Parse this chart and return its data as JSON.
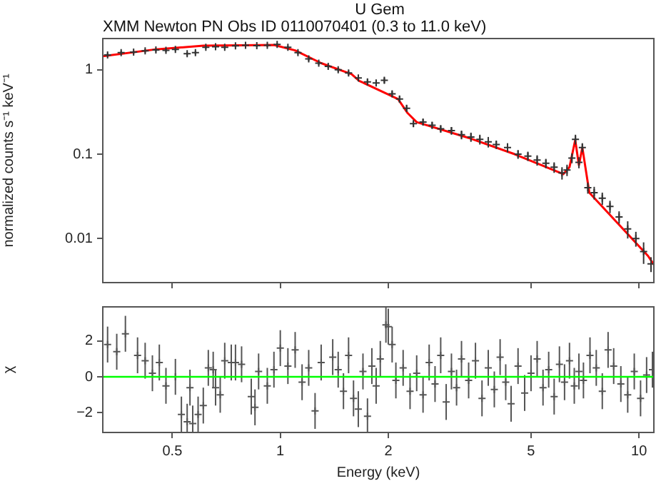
{
  "chart_data": [
    {
      "type": "scatter",
      "title": "U Gem",
      "subtitle": "XMM Newton PN Obs ID 0110070401 (0.3 to 11.0 keV)",
      "ylabel": "normalized counts s⁻¹ keV⁻¹",
      "log": "xy",
      "xlim": [
        0.32,
        11
      ],
      "xticks": [
        0.5,
        1,
        2,
        5,
        10
      ],
      "ylim": [
        0.003,
        2.35
      ],
      "yticks": [
        0.01,
        0.1,
        1
      ],
      "tick_labels": "y",
      "grid": false,
      "legend": false,
      "marker": "cross",
      "series": [
        {
          "color": "#333333",
          "x": [
            0.33,
            0.36,
            0.39,
            0.42,
            0.45,
            0.48,
            0.51,
            0.55,
            0.58,
            0.62,
            0.66,
            0.7,
            0.75,
            0.8,
            0.86,
            0.92,
            0.98,
            1.05,
            1.12,
            1.2,
            1.28,
            1.36,
            1.45,
            1.55,
            1.65,
            1.75,
            1.85,
            1.95,
            2.05,
            2.15,
            2.25,
            2.35,
            2.5,
            2.65,
            2.8,
            3.0,
            3.2,
            3.4,
            3.6,
            3.8,
            4.0,
            4.3,
            4.6,
            4.9,
            5.2,
            5.5,
            5.8,
            6.1,
            6.3,
            6.5,
            6.65,
            6.8,
            6.95,
            7.2,
            7.5,
            7.9,
            8.3,
            8.8,
            9.3,
            9.8,
            10.3,
            10.8
          ],
          "values": [
            1.5,
            1.6,
            1.62,
            1.68,
            1.72,
            1.7,
            1.75,
            1.55,
            1.6,
            1.85,
            1.88,
            1.85,
            1.92,
            1.95,
            1.93,
            1.95,
            2.0,
            1.85,
            1.6,
            1.35,
            1.2,
            1.1,
            1.0,
            0.92,
            0.8,
            0.72,
            0.7,
            0.75,
            0.52,
            0.45,
            0.35,
            0.23,
            0.24,
            0.22,
            0.2,
            0.19,
            0.17,
            0.16,
            0.15,
            0.14,
            0.13,
            0.12,
            0.1,
            0.095,
            0.085,
            0.078,
            0.07,
            0.06,
            0.065,
            0.09,
            0.15,
            0.08,
            0.12,
            0.04,
            0.035,
            0.03,
            0.024,
            0.018,
            0.013,
            0.01,
            0.007,
            0.005
          ],
          "errors": [
            0.08,
            0.08,
            0.08,
            0.08,
            0.08,
            0.08,
            0.08,
            0.08,
            0.08,
            0.08,
            0.08,
            0.08,
            0.08,
            0.08,
            0.08,
            0.08,
            0.08,
            0.08,
            0.08,
            0.08,
            0.06,
            0.06,
            0.06,
            0.06,
            0.06,
            0.06,
            0.06,
            0.06,
            0.04,
            0.04,
            0.03,
            0.02,
            0.02,
            0.02,
            0.02,
            0.02,
            0.02,
            0.02,
            0.02,
            0.02,
            0.015,
            0.015,
            0.012,
            0.012,
            0.012,
            0.01,
            0.01,
            0.01,
            0.01,
            0.012,
            0.02,
            0.012,
            0.015,
            0.006,
            0.006,
            0.005,
            0.004,
            0.003,
            0.003,
            0.002,
            0.002,
            0.001
          ]
        },
        {
          "type": "line",
          "marker": "none",
          "color": "#ff0000",
          "x": [
            0.32,
            0.45,
            0.61,
            0.96,
            1.1,
            1.3,
            1.58,
            1.66,
            2.0,
            2.13,
            2.26,
            2.4,
            3.35,
            4.5,
            6.15,
            6.4,
            6.64,
            6.8,
            6.95,
            7.27,
            10.6,
            11
          ],
          "values": [
            1.45,
            1.75,
            1.93,
            1.97,
            1.7,
            1.2,
            0.89,
            0.74,
            0.51,
            0.45,
            0.31,
            0.24,
            0.156,
            0.1,
            0.058,
            0.07,
            0.147,
            0.074,
            0.12,
            0.035,
            0.0062,
            0.0049
          ]
        }
      ]
    },
    {
      "type": "scatter",
      "xlabel": "Energy (keV)",
      "ylabel": "χ",
      "log": "x",
      "xlim": [
        0.32,
        11
      ],
      "xticks": [
        0.5,
        1,
        2,
        5,
        10
      ],
      "ylim": [
        -3.1,
        3.9
      ],
      "yticks": [
        {
          "value": -2,
          "label": "−2"
        },
        0,
        2
      ],
      "grid": false,
      "legend": false,
      "marker": "cross",
      "ref_lines": [
        {
          "axis": "y",
          "value": 0,
          "color": "#00ff00"
        }
      ],
      "series": [
        {
          "color": "#555555",
          "x": [
            0.33,
            0.35,
            0.37,
            0.4,
            0.42,
            0.44,
            0.46,
            0.48,
            0.51,
            0.53,
            0.55,
            0.56,
            0.57,
            0.59,
            0.61,
            0.63,
            0.65,
            0.66,
            0.68,
            0.7,
            0.73,
            0.75,
            0.78,
            0.83,
            0.85,
            0.87,
            0.92,
            0.96,
            1.0,
            1.05,
            1.1,
            1.15,
            1.2,
            1.25,
            1.3,
            1.4,
            1.45,
            1.5,
            1.55,
            1.6,
            1.65,
            1.7,
            1.75,
            1.8,
            1.85,
            1.9,
            1.97,
            2.0,
            2.05,
            2.1,
            2.2,
            2.3,
            2.4,
            2.5,
            2.6,
            2.7,
            2.8,
            2.9,
            3.0,
            3.1,
            3.2,
            3.35,
            3.5,
            3.65,
            3.8,
            3.95,
            4.1,
            4.25,
            4.4,
            4.6,
            4.8,
            5.0,
            5.2,
            5.4,
            5.6,
            5.8,
            6.0,
            6.2,
            6.4,
            6.6,
            6.8,
            7.0,
            7.3,
            7.6,
            7.9,
            8.2,
            8.5,
            8.9,
            9.3,
            9.7,
            10.1,
            10.5,
            10.9
          ],
          "values": [
            1.8,
            1.4,
            2.4,
            1.2,
            0.9,
            0.2,
            0.8,
            -0.5,
            0,
            -2.1,
            -2.5,
            -0.6,
            -2.6,
            -2.1,
            -1.6,
            0.5,
            0.4,
            -0.6,
            -1.0,
            0.9,
            0.8,
            0.8,
            0.7,
            -1.1,
            -1.7,
            0.3,
            -0.5,
            0.4,
            1.6,
            0.6,
            1.5,
            -0.3,
            0.5,
            -1.9,
            0.8,
            1.1,
            0.4,
            -0.8,
            1.2,
            -1.2,
            -1.8,
            0.3,
            -2.2,
            0.6,
            -0.5,
            1.0,
            2.9,
            2.8,
            1.8,
            -0.2,
            0.5,
            -0.8,
            0.2,
            -1.0,
            0.8,
            -0.4,
            1.2,
            -1.4,
            0.3,
            -0.6,
            1.0,
            -0.2,
            0.9,
            -1.2,
            0.5,
            -0.7,
            1.1,
            -0.3,
            -1.5,
            0.6,
            -0.9,
            0.2,
            1.0,
            -0.6,
            0.4,
            -1.1,
            0.7,
            -0.3,
            0.9,
            -0.5,
            0.3,
            -0.2,
            1.2,
            0.5,
            -0.8,
            1.5,
            0.6,
            -0.4,
            -1.0,
            0.3,
            -1.2,
            0.1,
            0.4
          ],
          "errors": [
            1,
            1,
            1,
            1,
            1,
            1,
            1,
            1,
            1,
            1,
            1,
            1,
            1,
            1,
            1,
            1,
            1,
            1,
            1,
            1,
            1,
            1,
            1,
            1,
            1,
            1,
            1,
            1,
            1,
            1,
            1,
            1,
            1,
            1,
            1,
            1,
            1,
            1,
            1,
            1,
            1,
            1,
            1,
            1,
            1,
            1,
            1,
            1,
            1,
            1,
            1,
            1,
            1,
            1,
            1,
            1,
            1,
            1,
            1,
            1,
            1,
            1,
            1,
            1,
            1,
            1,
            1,
            1,
            1,
            1,
            1,
            1,
            1,
            1,
            1,
            1,
            1,
            1,
            1,
            1,
            1,
            1,
            1,
            1,
            1,
            1,
            1,
            1,
            1,
            1,
            1,
            1,
            1
          ]
        }
      ]
    }
  ]
}
